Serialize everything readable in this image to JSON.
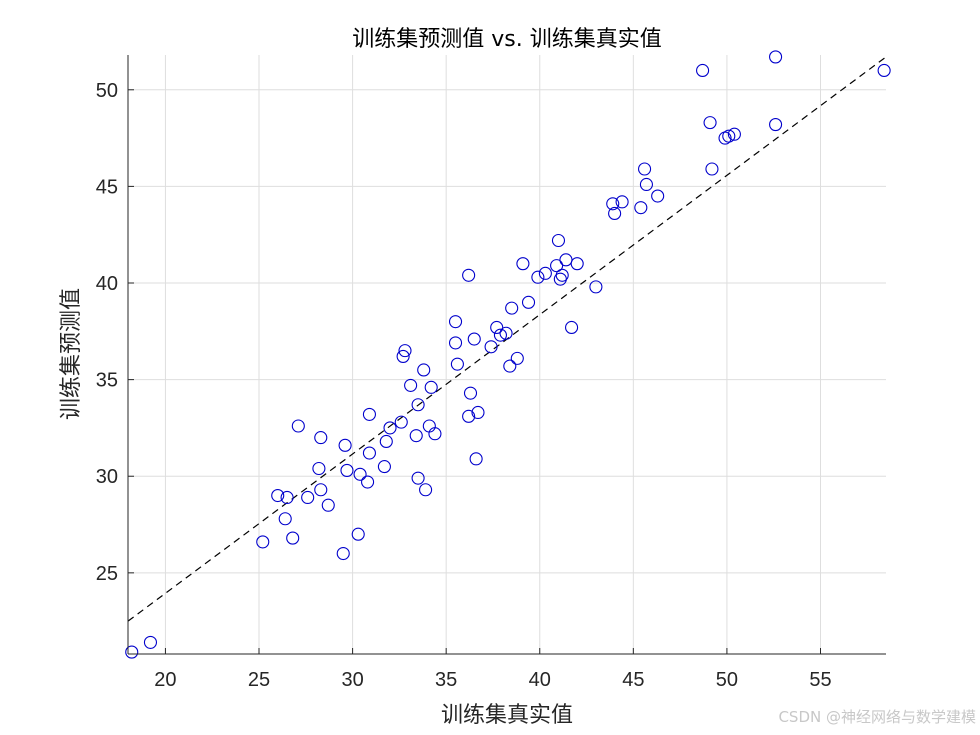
{
  "watermark": "CSDN @神经网络与数学建模",
  "chart_data": {
    "type": "scatter",
    "title": "训练集预测值 vs. 训练集真实值",
    "xlabel": "训练集真实值",
    "ylabel": "训练集预测值",
    "xlim": [
      18,
      58.5
    ],
    "ylim": [
      20.8,
      51.8
    ],
    "xticks": [
      20,
      25,
      30,
      35,
      40,
      45,
      50,
      55
    ],
    "yticks": [
      25,
      30,
      35,
      40,
      45,
      50
    ],
    "grid": true,
    "marker_color": "#0000cc",
    "reference_line": {
      "style": "dashed",
      "color": "#000000",
      "x": [
        18,
        58.5
      ],
      "y": [
        22.5,
        51.7
      ]
    },
    "points": [
      [
        18.2,
        20.9
      ],
      [
        19.2,
        21.4
      ],
      [
        25.2,
        26.6
      ],
      [
        26.0,
        29.0
      ],
      [
        26.4,
        27.8
      ],
      [
        26.5,
        28.9
      ],
      [
        26.8,
        26.8
      ],
      [
        27.1,
        32.6
      ],
      [
        27.6,
        28.9
      ],
      [
        28.2,
        30.4
      ],
      [
        28.3,
        29.3
      ],
      [
        28.3,
        32.0
      ],
      [
        28.7,
        28.5
      ],
      [
        29.5,
        26.0
      ],
      [
        29.6,
        31.6
      ],
      [
        29.7,
        30.3
      ],
      [
        30.3,
        27.0
      ],
      [
        30.4,
        30.1
      ],
      [
        30.8,
        29.7
      ],
      [
        30.9,
        31.2
      ],
      [
        30.9,
        33.2
      ],
      [
        31.7,
        30.5
      ],
      [
        31.8,
        31.8
      ],
      [
        32.0,
        32.5
      ],
      [
        32.6,
        32.8
      ],
      [
        32.7,
        36.2
      ],
      [
        32.8,
        36.5
      ],
      [
        33.1,
        34.7
      ],
      [
        33.4,
        32.1
      ],
      [
        33.5,
        29.9
      ],
      [
        33.5,
        33.7
      ],
      [
        33.8,
        35.5
      ],
      [
        33.9,
        29.3
      ],
      [
        34.1,
        32.6
      ],
      [
        34.2,
        34.6
      ],
      [
        34.4,
        32.2
      ],
      [
        35.5,
        38.0
      ],
      [
        35.5,
        36.9
      ],
      [
        35.6,
        35.8
      ],
      [
        36.2,
        33.1
      ],
      [
        36.2,
        40.4
      ],
      [
        36.3,
        34.3
      ],
      [
        36.5,
        37.1
      ],
      [
        36.6,
        30.9
      ],
      [
        36.7,
        33.3
      ],
      [
        37.4,
        36.7
      ],
      [
        37.7,
        37.7
      ],
      [
        37.9,
        37.3
      ],
      [
        38.2,
        37.4
      ],
      [
        38.4,
        35.7
      ],
      [
        38.5,
        38.7
      ],
      [
        38.8,
        36.1
      ],
      [
        39.1,
        41.0
      ],
      [
        39.4,
        39.0
      ],
      [
        39.9,
        40.3
      ],
      [
        40.3,
        40.5
      ],
      [
        40.9,
        40.9
      ],
      [
        41.0,
        42.2
      ],
      [
        41.1,
        40.2
      ],
      [
        41.2,
        40.4
      ],
      [
        41.4,
        41.2
      ],
      [
        41.7,
        37.7
      ],
      [
        42.0,
        41.0
      ],
      [
        43.0,
        39.8
      ],
      [
        43.9,
        44.1
      ],
      [
        44.0,
        43.6
      ],
      [
        44.4,
        44.2
      ],
      [
        45.4,
        43.9
      ],
      [
        45.6,
        45.9
      ],
      [
        45.7,
        45.1
      ],
      [
        46.3,
        44.5
      ],
      [
        48.7,
        51.0
      ],
      [
        49.1,
        48.3
      ],
      [
        49.2,
        45.9
      ],
      [
        49.9,
        47.5
      ],
      [
        50.1,
        47.6
      ],
      [
        50.4,
        47.7
      ],
      [
        52.6,
        48.2
      ],
      [
        52.6,
        51.7
      ],
      [
        58.4,
        51.0
      ]
    ]
  }
}
